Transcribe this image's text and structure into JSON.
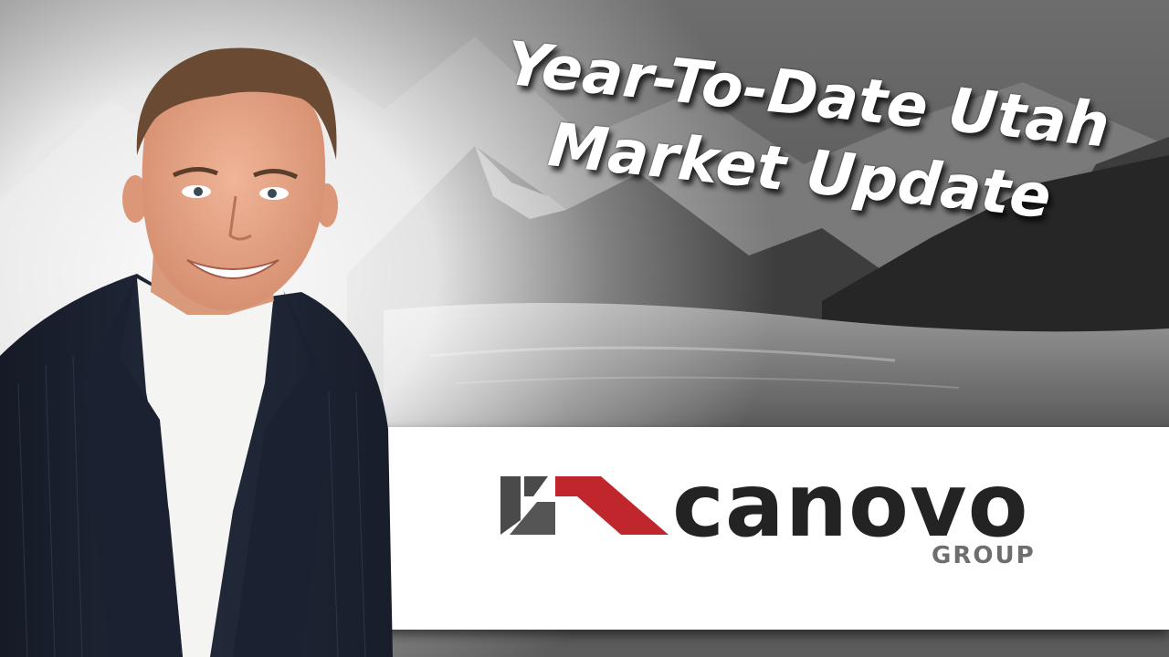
{
  "title": {
    "line1": "Year-To-Date Utah",
    "line2": "Market Update"
  },
  "logo": {
    "wordmark": "canovo",
    "submark": "GROUP",
    "accent_color": "#c0272d",
    "mark_gray": "#4a4a4a"
  },
  "colors": {
    "banner": "#ffffff",
    "title_text": "#ffffff",
    "suit": "#1e2433",
    "shirt": "#f4f4f2",
    "skin": "#e8a98c",
    "hair": "#6b4a33"
  }
}
